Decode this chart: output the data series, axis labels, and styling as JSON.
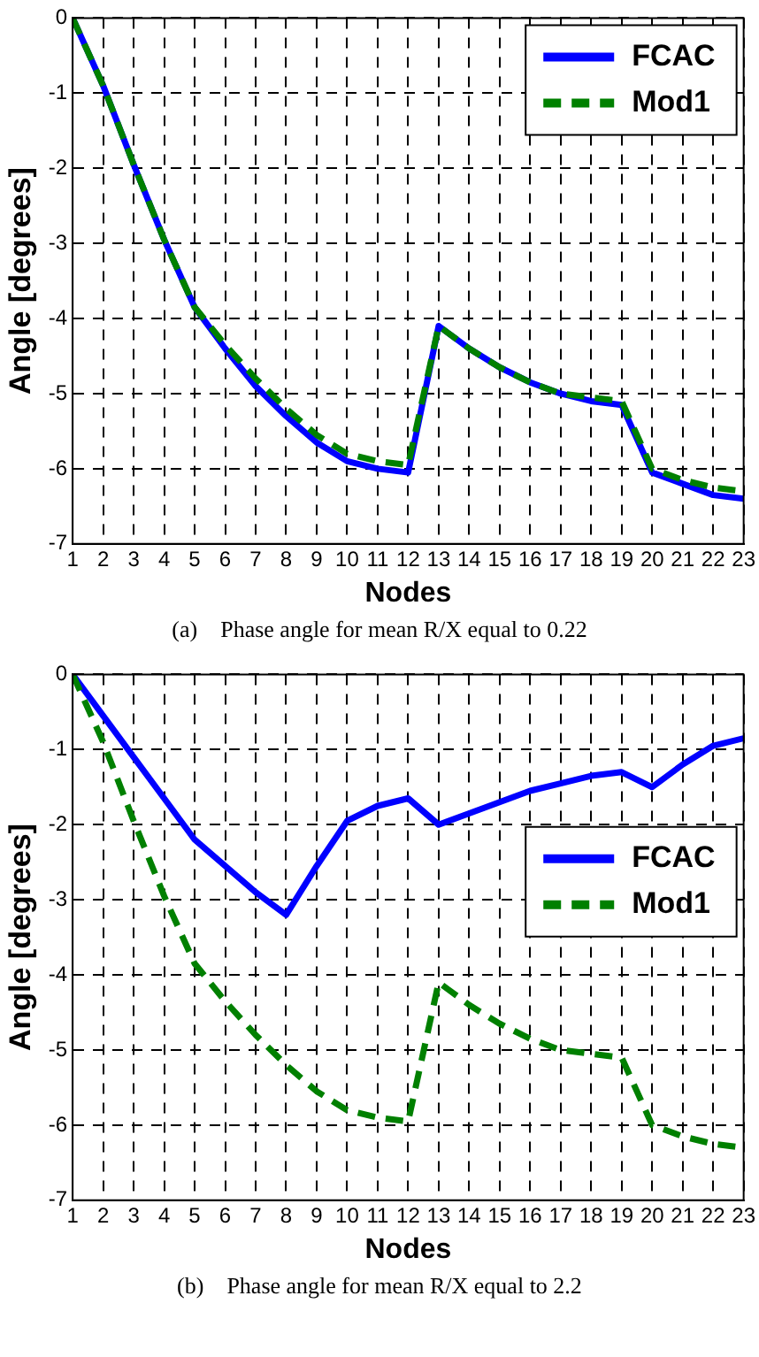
{
  "chart_data": [
    {
      "type": "line",
      "xlabel": "Nodes",
      "ylabel": "Angle [degrees]",
      "x": [
        1,
        2,
        3,
        4,
        5,
        6,
        7,
        8,
        9,
        10,
        11,
        12,
        13,
        14,
        15,
        16,
        17,
        18,
        19,
        20,
        21,
        22,
        23
      ],
      "series": [
        {
          "name": "FCAC",
          "color": "#0000ff",
          "line_style": "solid",
          "values": [
            0,
            -0.9,
            -1.95,
            -2.95,
            -3.85,
            -4.4,
            -4.9,
            -5.3,
            -5.65,
            -5.9,
            -6.0,
            -6.05,
            -4.1,
            -4.4,
            -4.65,
            -4.85,
            -5.0,
            -5.1,
            -5.15,
            -6.05,
            -6.2,
            -6.35,
            -6.4
          ]
        },
        {
          "name": "Mod1",
          "color": "#008000",
          "line_style": "dashed",
          "values": [
            0,
            -0.9,
            -1.95,
            -2.95,
            -3.85,
            -4.35,
            -4.8,
            -5.2,
            -5.55,
            -5.8,
            -5.9,
            -5.95,
            -4.1,
            -4.4,
            -4.65,
            -4.85,
            -5.0,
            -5.05,
            -5.1,
            -6.0,
            -6.15,
            -6.25,
            -6.3
          ]
        }
      ],
      "xlim": [
        1,
        23
      ],
      "xticks": [
        1,
        2,
        3,
        4,
        5,
        6,
        7,
        8,
        9,
        10,
        11,
        12,
        13,
        14,
        15,
        16,
        17,
        18,
        19,
        20,
        21,
        22,
        23
      ],
      "ylim": [
        -7,
        0
      ],
      "yticks": [
        -7,
        -6,
        -5,
        -4,
        -3,
        -2,
        -1,
        0
      ],
      "grid": true,
      "legend": "top right",
      "marker": "none",
      "annotations": [
        "(a)    Phase angle for mean R/X equal to 0.22"
      ]
    },
    {
      "type": "line",
      "xlabel": "Nodes",
      "ylabel": "Angle [degrees]",
      "x": [
        1,
        2,
        3,
        4,
        5,
        6,
        7,
        8,
        9,
        10,
        11,
        12,
        13,
        14,
        15,
        16,
        17,
        18,
        19,
        20,
        21,
        22,
        23
      ],
      "series": [
        {
          "name": "FCAC",
          "color": "#0000ff",
          "line_style": "solid",
          "values": [
            0,
            -0.55,
            -1.1,
            -1.65,
            -2.2,
            -2.55,
            -2.9,
            -3.2,
            -2.55,
            -1.95,
            -1.75,
            -1.65,
            -2.0,
            -1.85,
            -1.7,
            -1.55,
            -1.45,
            -1.35,
            -1.3,
            -1.5,
            -1.2,
            -0.95,
            -0.85
          ]
        },
        {
          "name": "Mod1",
          "color": "#008000",
          "line_style": "dashed",
          "values": [
            0,
            -0.9,
            -1.95,
            -2.95,
            -3.85,
            -4.35,
            -4.8,
            -5.2,
            -5.55,
            -5.8,
            -5.9,
            -5.95,
            -4.1,
            -4.4,
            -4.65,
            -4.85,
            -5.0,
            -5.05,
            -5.1,
            -6.0,
            -6.15,
            -6.25,
            -6.3
          ]
        }
      ],
      "xlim": [
        1,
        23
      ],
      "xticks": [
        1,
        2,
        3,
        4,
        5,
        6,
        7,
        8,
        9,
        10,
        11,
        12,
        13,
        14,
        15,
        16,
        17,
        18,
        19,
        20,
        21,
        22,
        23
      ],
      "ylim": [
        -7,
        0
      ],
      "yticks": [
        -7,
        -6,
        -5,
        -4,
        -3,
        -2,
        -1,
        0
      ],
      "grid": true,
      "legend": "right",
      "marker": "none",
      "annotations": [
        "(b)    Phase angle for mean R/X equal to 2.2"
      ]
    }
  ]
}
